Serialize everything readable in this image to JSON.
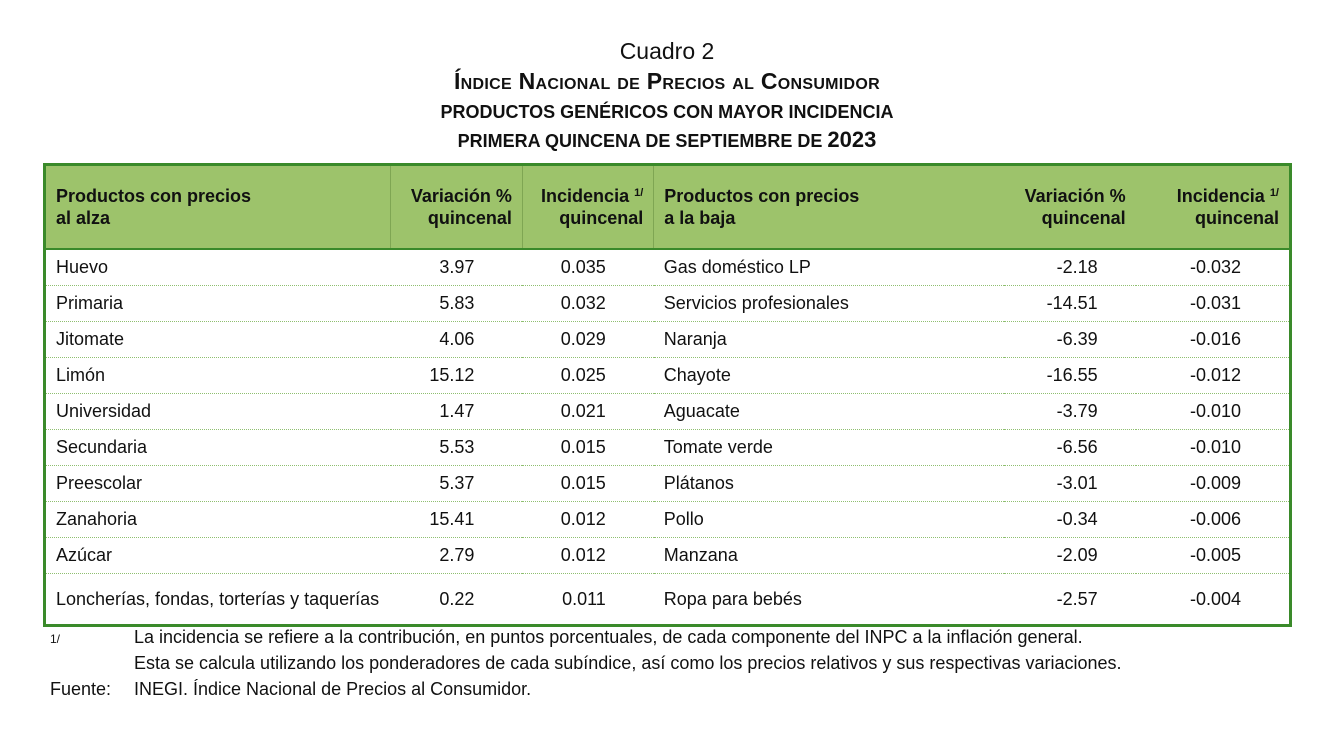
{
  "header": {
    "cuadro": "Cuadro 2",
    "title": "Índice Nacional de Precios al Consumidor",
    "subtitle": "PRODUCTOS GENÉRICOS CON MAYOR INCIDENCIA",
    "period": "PRIMERA QUINCENA DE SEPTIEMBRE DE",
    "year": "2023"
  },
  "table": {
    "columns": {
      "up_product_1": "Productos con precios",
      "up_product_2": "al alza",
      "var_1": "Variación %",
      "var_2": "quincenal",
      "inc_1": "Incidencia",
      "inc_sup": "1/",
      "inc_2": "quincenal",
      "down_product_1": "Productos con precios",
      "down_product_2": "a la baja"
    },
    "rows": [
      {
        "up": "Huevo",
        "up_var": "3.97",
        "up_inc": "0.035",
        "down": "Gas doméstico LP",
        "down_var": "-2.18",
        "down_inc": "-0.032"
      },
      {
        "up": "Primaria",
        "up_var": "5.83",
        "up_inc": "0.032",
        "down": "Servicios profesionales",
        "down_var": "-14.51",
        "down_inc": "-0.031"
      },
      {
        "up": "Jitomate",
        "up_var": "4.06",
        "up_inc": "0.029",
        "down": "Naranja",
        "down_var": "-6.39",
        "down_inc": "-0.016"
      },
      {
        "up": "Limón",
        "up_var": "15.12",
        "up_inc": "0.025",
        "down": "Chayote",
        "down_var": "-16.55",
        "down_inc": "-0.012"
      },
      {
        "up": "Universidad",
        "up_var": "1.47",
        "up_inc": "0.021",
        "down": "Aguacate",
        "down_var": "-3.79",
        "down_inc": "-0.010"
      },
      {
        "up": "Secundaria",
        "up_var": "5.53",
        "up_inc": "0.015",
        "down": "Tomate verde",
        "down_var": "-6.56",
        "down_inc": "-0.010"
      },
      {
        "up": "Preescolar",
        "up_var": "5.37",
        "up_inc": "0.015",
        "down": "Plátanos",
        "down_var": "-3.01",
        "down_inc": "-0.009"
      },
      {
        "up": "Zanahoria",
        "up_var": "15.41",
        "up_inc": "0.012",
        "down": "Pollo",
        "down_var": "-0.34",
        "down_inc": "-0.006"
      },
      {
        "up": "Azúcar",
        "up_var": "2.79",
        "up_inc": "0.012",
        "down": "Manzana",
        "down_var": "-2.09",
        "down_inc": "-0.005"
      },
      {
        "up": "Loncherías, fondas, torterías y taquerías",
        "up_var": "0.22",
        "up_inc": "0.011",
        "down": "Ropa para bebés",
        "down_var": "-2.57",
        "down_inc": "-0.004"
      }
    ]
  },
  "footnotes": {
    "note_mark": "1/",
    "note_line1": "La incidencia se refiere a la contribución, en puntos porcentuales, de cada componente del INPC a la inflación general.",
    "note_line2": "Esta se calcula utilizando los ponderadores de cada subíndice, así como los precios relativos y sus respectivas variaciones.",
    "source_label": "Fuente:",
    "source_text": "INEGI. Índice Nacional de Precios al Consumidor."
  }
}
